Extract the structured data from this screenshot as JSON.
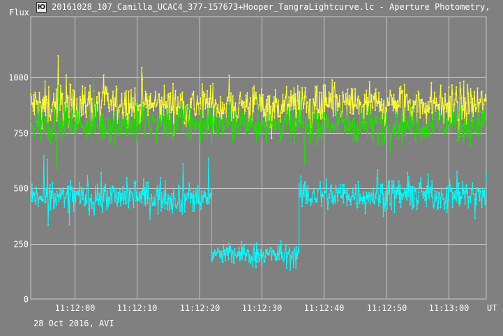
{
  "window": {
    "title": "20161028_107_Camilla_UCAC4_377-157673+Hooper_TangraLightcurve.lc - Aperture Photometry,",
    "icon": "tangra-app-icon"
  },
  "footer": "28 Oct 2016, AVI",
  "colors": {
    "background": "#808080",
    "grid": "#c8c8c8",
    "text": "#ffffff",
    "series_yellow": "#ffff33",
    "series_green": "#22dd00",
    "series_cyan": "#00ffff"
  },
  "chart_data": {
    "type": "line",
    "ylabel": "Flux",
    "xlabel": "UT",
    "ylim": [
      0,
      1000
    ],
    "yticks": [
      0,
      250,
      500,
      750,
      1000
    ],
    "ytick_labels": [
      "0",
      "250",
      "500",
      "750",
      "1000"
    ],
    "xlim": [
      "11:11:53",
      "11:13:06"
    ],
    "xticks": [
      "11:12:00",
      "11:12:10",
      "11:12:20",
      "11:12:30",
      "11:12:40",
      "11:12:50",
      "11:13:00"
    ],
    "grid": true,
    "legend": "none",
    "sample_step_s": 0.1,
    "series": [
      {
        "color": "#ffff33",
        "description": "target/comparison star, noisy around mean",
        "segments": [
          {
            "t0": "11:11:53",
            "t1": "11:13:06",
            "mean": 875,
            "noise": 95
          }
        ]
      },
      {
        "color": "#22dd00",
        "description": "comparison star, noisy around mean",
        "segments": [
          {
            "t0": "11:11:53",
            "t1": "11:13:06",
            "mean": 790,
            "noise": 85
          }
        ]
      },
      {
        "color": "#00ffff",
        "description": "occulted star",
        "segments": [
          {
            "t0": "11:11:53",
            "t1": "11:12:22",
            "mean": 460,
            "noise": 75
          },
          {
            "t0": "11:12:22",
            "t1": "11:12:36",
            "mean": 200,
            "noise": 55
          },
          {
            "t0": "11:12:36",
            "t1": "11:13:06",
            "mean": 470,
            "noise": 75
          }
        ]
      }
    ]
  }
}
